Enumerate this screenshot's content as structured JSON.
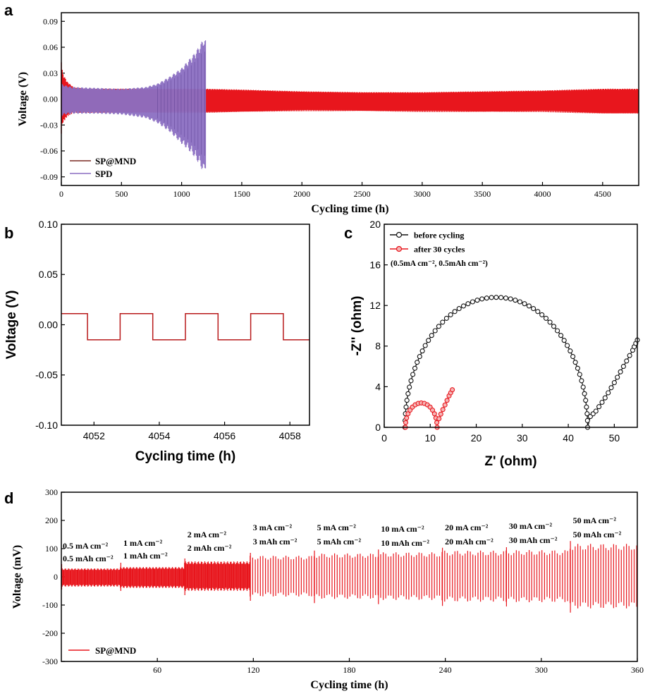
{
  "colors": {
    "red": "#e8161d",
    "red_dark": "#b8191a",
    "purple": "#8b6fc2",
    "black": "#111111",
    "brown": "#7a2a22"
  },
  "chart_data": [
    {
      "panel": "a",
      "type": "line",
      "title": "",
      "xlabel": "Cycling time (h)",
      "ylabel": "Voltage (V)",
      "xlim": [
        0,
        4800
      ],
      "ylim": [
        -0.1,
        0.1
      ],
      "xticks": [
        0,
        500,
        1000,
        1500,
        2000,
        2500,
        3000,
        3500,
        4000,
        4500
      ],
      "yticks": [
        -0.09,
        -0.06,
        -0.03,
        0.0,
        0.03,
        0.06,
        0.09
      ],
      "ytick_labels": [
        "-0.09",
        "-0.06",
        "-0.03",
        "0.00",
        "0.03",
        "0.06",
        "0.09"
      ],
      "legend_position": "bottom-left",
      "series": [
        {
          "name": "SP@MND",
          "color": "#e8161d",
          "x": [
            0,
            10,
            50,
            100,
            200,
            400,
            600,
            800,
            1000,
            1200,
            1500,
            2000,
            2500,
            3000,
            3500,
            4000,
            4500,
            4800
          ],
          "upper": [
            0.046,
            0.03,
            0.02,
            0.014,
            0.012,
            0.012,
            0.012,
            0.012,
            0.012,
            0.012,
            0.011,
            0.009,
            0.008,
            0.008,
            0.009,
            0.01,
            0.012,
            0.012
          ],
          "lower": [
            -0.04,
            -0.028,
            -0.02,
            -0.016,
            -0.016,
            -0.016,
            -0.016,
            -0.016,
            -0.016,
            -0.016,
            -0.015,
            -0.014,
            -0.014,
            -0.015,
            -0.015,
            -0.015,
            -0.017,
            -0.017
          ]
        },
        {
          "name": "SPD",
          "color": "#8b6fc2",
          "x": [
            0,
            30,
            100,
            300,
            500,
            700,
            800,
            900,
            1000,
            1050,
            1100,
            1150,
            1180,
            1200
          ],
          "upper": [
            0.018,
            0.016,
            0.014,
            0.013,
            0.012,
            0.014,
            0.018,
            0.026,
            0.036,
            0.044,
            0.052,
            0.062,
            0.07,
            0.068
          ],
          "lower": [
            -0.02,
            -0.018,
            -0.017,
            -0.017,
            -0.018,
            -0.022,
            -0.028,
            -0.038,
            -0.052,
            -0.058,
            -0.066,
            -0.076,
            -0.085,
            -0.08
          ]
        }
      ]
    },
    {
      "panel": "b",
      "type": "line",
      "title": "",
      "xlabel": "Cycling time (h)",
      "ylabel": "Voltage (V)",
      "xlim": [
        4051,
        4058.6
      ],
      "ylim": [
        -0.1,
        0.1
      ],
      "xticks": [
        4052,
        4054,
        4056,
        4058
      ],
      "yticks": [
        -0.1,
        -0.05,
        0.0,
        0.05,
        0.1
      ],
      "ytick_labels": [
        "-0.10",
        "-0.05",
        "0.00",
        "0.05",
        "0.10"
      ],
      "series": [
        {
          "name": "SP@MND",
          "color": "#b8191a",
          "high": 0.011,
          "low": -0.015,
          "switch_times": [
            4051.0,
            4051.8,
            4052.8,
            4053.8,
            4054.8,
            4055.8,
            4056.8,
            4057.8,
            4058.6
          ],
          "start_state": "high"
        }
      ]
    },
    {
      "panel": "c",
      "type": "scatter",
      "title": "",
      "xlabel": "Z' (ohm)",
      "ylabel": "-Z'' (ohm)",
      "xlim": [
        0,
        55
      ],
      "ylim": [
        0,
        20
      ],
      "xticks": [
        0,
        10,
        20,
        30,
        40,
        50
      ],
      "yticks": [
        0,
        4,
        8,
        12,
        16,
        20
      ],
      "annotation": "(0.5mA cm⁻², 0.5mAh cm⁻²)",
      "legend_position": "top-left",
      "series": [
        {
          "name": "before cycling",
          "color": "#111111",
          "semicircle": {
            "start": 4.5,
            "end": 44.2,
            "peak": 12.8
          },
          "tail": [
            [
              44.2,
              0.8
            ],
            [
              46,
              1.6
            ],
            [
              48,
              2.9
            ],
            [
              50,
              4.4
            ],
            [
              52,
              6.0
            ],
            [
              54,
              7.6
            ],
            [
              55,
              8.6
            ]
          ]
        },
        {
          "name": "after 30 cycles",
          "color": "#e8161d",
          "semicircle": {
            "start": 4.6,
            "end": 11.5,
            "peak": 2.4
          },
          "tail": [
            [
              11.5,
              0.4
            ],
            [
              12.3,
              1.3
            ],
            [
              13.2,
              2.2
            ],
            [
              14.1,
              3.1
            ],
            [
              14.8,
              3.7
            ]
          ]
        }
      ]
    },
    {
      "panel": "d",
      "type": "line",
      "title": "",
      "xlabel": "Cycling time (h)",
      "ylabel": "Voltage (mV)",
      "xlim": [
        0,
        360
      ],
      "ylim": [
        -300,
        300
      ],
      "xticks": [
        60,
        120,
        180,
        240,
        300,
        360
      ],
      "yticks": [
        -300,
        -200,
        -100,
        0,
        100,
        200,
        300
      ],
      "legend_position": "bottom-left",
      "series": [
        {
          "name": "SP@MND",
          "color": "#e8161d",
          "segments": [
            {
              "start": 0,
              "end": 37,
              "amplitude": 30,
              "current": "0.5 mA cm⁻²",
              "capacity": "0.5 mAh cm⁻²"
            },
            {
              "start": 37,
              "end": 77,
              "amplitude": 35,
              "current": "1 mA cm⁻²",
              "capacity": "1 mAh cm⁻²"
            },
            {
              "start": 77,
              "end": 118,
              "amplitude": 50,
              "current": "2 mA cm⁻²",
              "capacity": "2 mAh cm⁻²"
            },
            {
              "start": 118,
              "end": 158,
              "amplitude": 70,
              "current": "3 mA cm⁻²",
              "capacity": "3 mAh cm⁻²"
            },
            {
              "start": 158,
              "end": 198,
              "amplitude": 78,
              "current": "5 mA cm⁻²",
              "capacity": "5 mAh cm⁻²"
            },
            {
              "start": 198,
              "end": 238,
              "amplitude": 82,
              "current": "10 mA cm⁻²",
              "capacity": "10 mAh cm⁻²"
            },
            {
              "start": 238,
              "end": 278,
              "amplitude": 88,
              "current": "20 mA cm⁻²",
              "capacity": "20 mAh cm⁻²"
            },
            {
              "start": 278,
              "end": 318,
              "amplitude": 90,
              "current": "30 mA cm⁻²",
              "capacity": "30 mAh cm⁻²"
            },
            {
              "start": 318,
              "end": 360,
              "amplitude": 112,
              "current": "50 mA cm⁻²",
              "capacity": "50 mAh cm⁻²"
            }
          ]
        }
      ]
    }
  ]
}
